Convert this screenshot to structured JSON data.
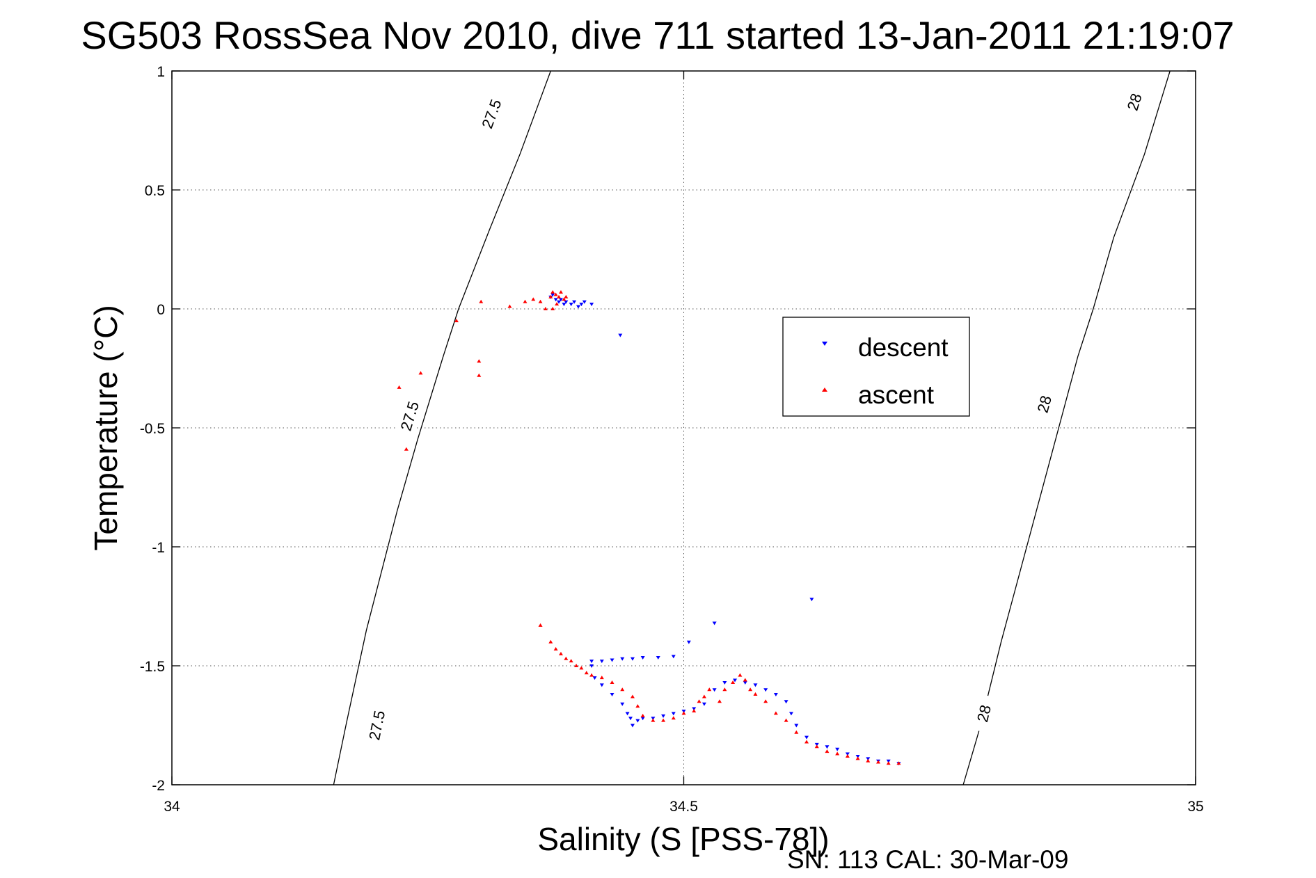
{
  "colors": {
    "descent": "#0000ff",
    "ascent": "#ff0000",
    "isopycnal": "#000000",
    "grid": "#555555"
  },
  "footer": "SN: 113  CAL: 30-Mar-09",
  "chart_data": {
    "type": "scatter",
    "title": "SG503 RossSea Nov 2010, dive 711 started 13-Jan-2011 21:19:07",
    "xlabel": "Salinity (S [PSS-78])",
    "ylabel": "Temperature (°C)",
    "xlim": [
      34,
      35
    ],
    "ylim": [
      -2,
      1
    ],
    "xticks": [
      "34",
      "34.5",
      "35"
    ],
    "xtick_values": [
      34,
      34.5,
      35
    ],
    "yticks": [
      "1",
      "0.5",
      "0",
      "-0.5",
      "-1",
      "-1.5",
      "-2"
    ],
    "ytick_values": [
      1,
      0.5,
      0,
      -0.5,
      -1,
      -1.5,
      -2
    ],
    "grid": true,
    "legend": {
      "placement": "center-right"
    },
    "isopycnals": [
      {
        "label": "27.5",
        "points": [
          [
            34.158,
            -2.0
          ],
          [
            34.17,
            -1.75
          ],
          [
            34.19,
            -1.35
          ],
          [
            34.22,
            -0.85
          ],
          [
            34.24,
            -0.55
          ],
          [
            34.265,
            -0.2
          ],
          [
            34.28,
            0.0
          ],
          [
            34.31,
            0.33
          ],
          [
            34.34,
            0.65
          ],
          [
            34.37,
            1.0
          ]
        ],
        "label_positions": [
          [
            34.2,
            -1.75
          ],
          [
            34.232,
            -0.45
          ],
          [
            34.312,
            0.82
          ]
        ]
      },
      {
        "label": "28",
        "points": [
          [
            34.773,
            -2.0
          ],
          [
            34.79,
            -1.75
          ],
          [
            34.81,
            -1.4
          ],
          [
            34.835,
            -1.0
          ],
          [
            34.86,
            -0.6
          ],
          [
            34.885,
            -0.2
          ],
          [
            34.9,
            0.0
          ],
          [
            34.92,
            0.3
          ],
          [
            34.95,
            0.65
          ],
          [
            34.975,
            1.0
          ]
        ],
        "label_positions": [
          [
            34.793,
            -1.7
          ],
          [
            34.852,
            -0.4
          ],
          [
            34.94,
            0.87
          ]
        ]
      }
    ],
    "series": [
      {
        "name": "descent",
        "marker": "triangle-down",
        "points": [
          [
            34.37,
            0.05
          ],
          [
            34.372,
            0.06
          ],
          [
            34.375,
            0.04
          ],
          [
            34.378,
            0.03
          ],
          [
            34.38,
            0.04
          ],
          [
            34.383,
            0.02
          ],
          [
            34.385,
            0.03
          ],
          [
            34.39,
            0.02
          ],
          [
            34.393,
            0.03
          ],
          [
            34.397,
            0.01
          ],
          [
            34.4,
            0.02
          ],
          [
            34.403,
            0.03
          ],
          [
            34.41,
            0.02
          ],
          [
            34.438,
            -0.11
          ],
          [
            34.625,
            -1.22
          ],
          [
            34.53,
            -1.32
          ],
          [
            34.505,
            -1.4
          ],
          [
            34.41,
            -1.48
          ],
          [
            34.42,
            -1.48
          ],
          [
            34.43,
            -1.475
          ],
          [
            34.44,
            -1.47
          ],
          [
            34.45,
            -1.47
          ],
          [
            34.46,
            -1.465
          ],
          [
            34.475,
            -1.465
          ],
          [
            34.49,
            -1.46
          ],
          [
            34.41,
            -1.5
          ],
          [
            34.413,
            -1.55
          ],
          [
            34.42,
            -1.58
          ],
          [
            34.43,
            -1.62
          ],
          [
            34.44,
            -1.66
          ],
          [
            34.445,
            -1.7
          ],
          [
            34.448,
            -1.72
          ],
          [
            34.45,
            -1.75
          ],
          [
            34.455,
            -1.73
          ],
          [
            34.46,
            -1.72
          ],
          [
            34.47,
            -1.72
          ],
          [
            34.48,
            -1.71
          ],
          [
            34.49,
            -1.7
          ],
          [
            34.5,
            -1.69
          ],
          [
            34.51,
            -1.68
          ],
          [
            34.52,
            -1.66
          ],
          [
            34.53,
            -1.6
          ],
          [
            34.54,
            -1.57
          ],
          [
            34.55,
            -1.56
          ],
          [
            34.56,
            -1.57
          ],
          [
            34.57,
            -1.58
          ],
          [
            34.58,
            -1.6
          ],
          [
            34.59,
            -1.62
          ],
          [
            34.6,
            -1.65
          ],
          [
            34.605,
            -1.7
          ],
          [
            34.61,
            -1.75
          ],
          [
            34.62,
            -1.8
          ],
          [
            34.63,
            -1.83
          ],
          [
            34.64,
            -1.84
          ],
          [
            34.65,
            -1.85
          ],
          [
            34.66,
            -1.87
          ],
          [
            34.67,
            -1.88
          ],
          [
            34.68,
            -1.89
          ],
          [
            34.69,
            -1.9
          ],
          [
            34.7,
            -1.9
          ],
          [
            34.71,
            -1.91
          ]
        ]
      },
      {
        "name": "ascent",
        "marker": "triangle-up",
        "points": [
          [
            34.222,
            -0.33
          ],
          [
            34.229,
            -0.59
          ],
          [
            34.243,
            -0.27
          ],
          [
            34.278,
            -0.05
          ],
          [
            34.3,
            -0.22
          ],
          [
            34.3,
            -0.28
          ],
          [
            34.302,
            0.03
          ],
          [
            34.33,
            0.01
          ],
          [
            34.345,
            0.03
          ],
          [
            34.353,
            0.04
          ],
          [
            34.36,
            0.03
          ],
          [
            34.365,
            0.0
          ],
          [
            34.37,
            0.05
          ],
          [
            34.372,
            0.07
          ],
          [
            34.375,
            0.06
          ],
          [
            34.378,
            0.05
          ],
          [
            34.38,
            0.07
          ],
          [
            34.383,
            0.04
          ],
          [
            34.385,
            0.05
          ],
          [
            34.372,
            0.0
          ],
          [
            34.376,
            0.02
          ],
          [
            34.36,
            -1.33
          ],
          [
            34.37,
            -1.4
          ],
          [
            34.375,
            -1.43
          ],
          [
            34.38,
            -1.45
          ],
          [
            34.385,
            -1.47
          ],
          [
            34.39,
            -1.48
          ],
          [
            34.395,
            -1.5
          ],
          [
            34.4,
            -1.51
          ],
          [
            34.405,
            -1.53
          ],
          [
            34.41,
            -1.54
          ],
          [
            34.42,
            -1.55
          ],
          [
            34.43,
            -1.57
          ],
          [
            34.44,
            -1.6
          ],
          [
            34.45,
            -1.63
          ],
          [
            34.455,
            -1.67
          ],
          [
            34.46,
            -1.71
          ],
          [
            34.47,
            -1.73
          ],
          [
            34.48,
            -1.73
          ],
          [
            34.49,
            -1.72
          ],
          [
            34.5,
            -1.7
          ],
          [
            34.51,
            -1.69
          ],
          [
            34.515,
            -1.65
          ],
          [
            34.52,
            -1.63
          ],
          [
            34.525,
            -1.6
          ],
          [
            34.535,
            -1.65
          ],
          [
            34.54,
            -1.6
          ],
          [
            34.548,
            -1.57
          ],
          [
            34.555,
            -1.54
          ],
          [
            34.56,
            -1.56
          ],
          [
            34.565,
            -1.6
          ],
          [
            34.57,
            -1.62
          ],
          [
            34.58,
            -1.65
          ],
          [
            34.59,
            -1.7
          ],
          [
            34.6,
            -1.73
          ],
          [
            34.61,
            -1.78
          ],
          [
            34.62,
            -1.82
          ],
          [
            34.63,
            -1.84
          ],
          [
            34.64,
            -1.86
          ],
          [
            34.65,
            -1.87
          ],
          [
            34.66,
            -1.88
          ],
          [
            34.67,
            -1.89
          ],
          [
            34.68,
            -1.9
          ],
          [
            34.69,
            -1.905
          ],
          [
            34.7,
            -1.91
          ],
          [
            34.71,
            -1.91
          ]
        ]
      }
    ]
  }
}
